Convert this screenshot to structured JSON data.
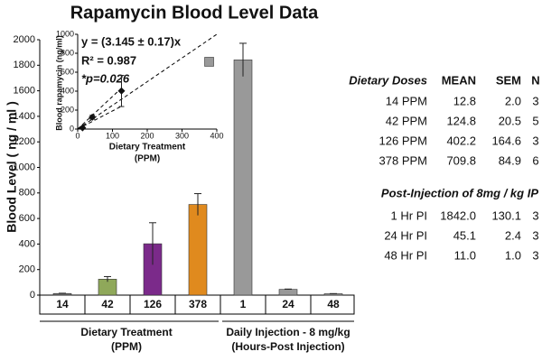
{
  "chart_data": [
    {
      "type": "bar",
      "title": "Rapamycin Blood Level Data",
      "ylabel": "Blood Level ( ng / ml )",
      "categories": [
        "14",
        "42",
        "126",
        "378",
        "1",
        "24",
        "48"
      ],
      "values": [
        12.8,
        124.8,
        402.2,
        709.8,
        1842.0,
        45.1,
        11.0
      ],
      "errors": [
        2.0,
        20.5,
        164.6,
        84.9,
        130.1,
        2.4,
        1.0
      ],
      "colors": [
        "#707070",
        "#8fa85a",
        "#7b2a8a",
        "#e08a1e",
        "#999999",
        "#999999",
        "#999999"
      ],
      "groups": [
        {
          "label": "Dietary Treatment",
          "sublabel": "(PPM)"
        },
        {
          "label": "Daily Injection - 8 mg/kg",
          "sublabel": "(Hours-Post Injection)"
        }
      ],
      "ylim": [
        0,
        2000
      ],
      "yticks": [
        0,
        200,
        400,
        600,
        800,
        1000,
        1200,
        1400,
        1600,
        1800,
        2000
      ]
    },
    {
      "type": "scatter",
      "xlabel": "Dietary Treatment",
      "xsublabel": "(PPM)",
      "ylabel": "Blood rapamycin (ng/ml)",
      "x": [
        14,
        42,
        126
      ],
      "values": [
        12.8,
        124.8,
        402.2
      ],
      "errors": [
        2.0,
        20.5,
        164.6
      ],
      "outlier": {
        "x": 378,
        "value": 709.8,
        "color": "#999999"
      },
      "annotations": [
        "y = (3.145 ± 0.17)x",
        "R² = 0.987",
        "*p=0.026"
      ],
      "xlim": [
        0,
        400
      ],
      "xticks": [
        0,
        100,
        200,
        300,
        400
      ],
      "ylim": [
        0,
        1000
      ],
      "yticks": [
        0,
        200,
        400,
        600,
        800,
        1000
      ]
    }
  ],
  "table": {
    "sections": [
      {
        "title": "Dietary Doses",
        "columns": [
          "MEAN",
          "SEM",
          "N"
        ],
        "rows": [
          [
            "14 PPM",
            "12.8",
            "2.0",
            "3"
          ],
          [
            "42 PPM",
            "124.8",
            "20.5",
            "5"
          ],
          [
            "126 PPM",
            "402.2",
            "164.6",
            "3"
          ],
          [
            "378 PPM",
            "709.8",
            "84.9",
            "6"
          ]
        ]
      },
      {
        "title": "Post-Injection of 8mg / kg IP",
        "rows": [
          [
            "1 Hr PI",
            "1842.0",
            "130.1",
            "3"
          ],
          [
            "24 Hr PI",
            "45.1",
            "2.4",
            "3"
          ],
          [
            "48 Hr PI",
            "11.0",
            "1.0",
            "3"
          ]
        ]
      }
    ]
  }
}
